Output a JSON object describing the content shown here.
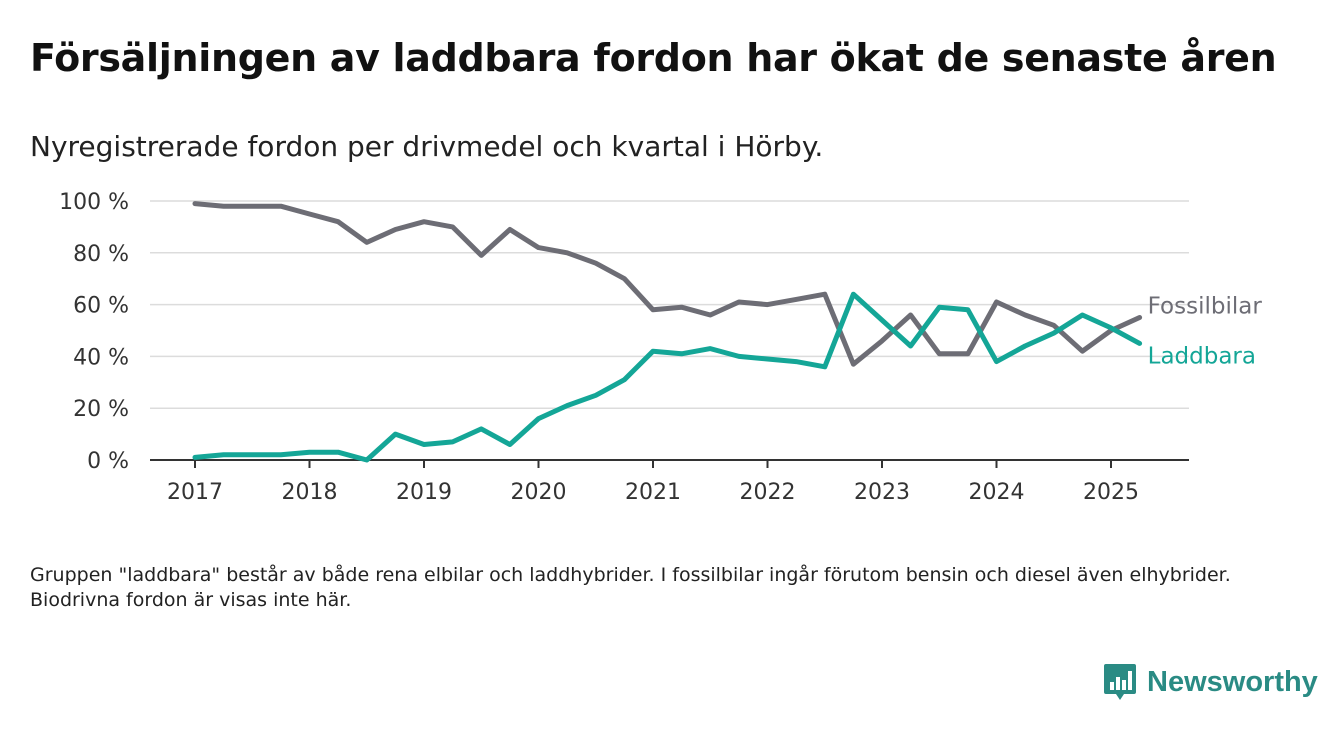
{
  "title": "Försäljningen av laddbara fordon har ökat de senaste åren",
  "subtitle": "Nyregistrerade fordon per drivmedel och kvartal i Hörby.",
  "note": "Gruppen \"laddbara\" består av både rena elbilar och laddhybrider. I fossilbilar ingår förutom bensin och diesel även elhybrider. Biodrivna fordon är visas inte här.",
  "brand": {
    "name": "Newsworthy",
    "icon": "newsworthy-logo-icon",
    "color": "#2a8b84"
  },
  "chart_data": {
    "type": "line",
    "x_unit": "quarter",
    "x": [
      "2017 Q1",
      "2017 Q2",
      "2017 Q3",
      "2017 Q4",
      "2018 Q1",
      "2018 Q2",
      "2018 Q3",
      "2018 Q4",
      "2019 Q1",
      "2019 Q2",
      "2019 Q3",
      "2019 Q4",
      "2020 Q1",
      "2020 Q2",
      "2020 Q3",
      "2020 Q4",
      "2021 Q1",
      "2021 Q2",
      "2021 Q3",
      "2021 Q4",
      "2022 Q1",
      "2022 Q2",
      "2022 Q3",
      "2022 Q4",
      "2023 Q1",
      "2023 Q2",
      "2023 Q3",
      "2023 Q4",
      "2024 Q1",
      "2024 Q2",
      "2024 Q3",
      "2024 Q4",
      "2025 Q1",
      "2025 Q2"
    ],
    "x_ticks": [
      "2017",
      "2018",
      "2019",
      "2020",
      "2021",
      "2022",
      "2023",
      "2024",
      "2025"
    ],
    "y_ticks": [
      "0 %",
      "20 %",
      "40 %",
      "60 %",
      "80 %",
      "100 %"
    ],
    "ylim": [
      0,
      100
    ],
    "grid": true,
    "legend": "direct labels at line ends",
    "series": [
      {
        "name": "Fossilbilar",
        "color": "#6d6d75",
        "values": [
          99,
          98,
          98,
          98,
          95,
          92,
          84,
          89,
          92,
          90,
          79,
          89,
          82,
          80,
          76,
          70,
          58,
          59,
          56,
          61,
          60,
          62,
          64,
          37,
          46,
          56,
          41,
          41,
          61,
          56,
          52,
          42,
          50,
          55
        ]
      },
      {
        "name": "Laddbara",
        "color": "#14a697",
        "values": [
          1,
          2,
          2,
          2,
          3,
          3,
          0,
          10,
          6,
          7,
          12,
          6,
          16,
          21,
          25,
          31,
          42,
          41,
          43,
          40,
          39,
          38,
          36,
          64,
          54,
          44,
          59,
          58,
          38,
          44,
          49,
          56,
          51,
          45
        ]
      }
    ]
  }
}
